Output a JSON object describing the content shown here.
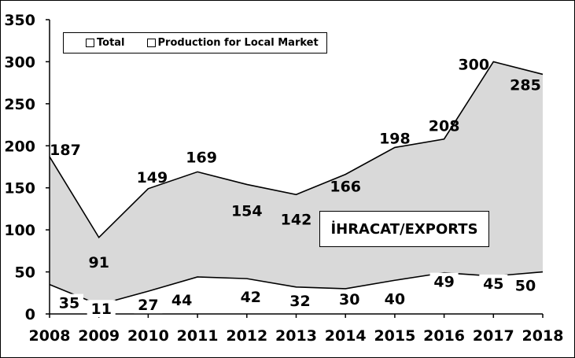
{
  "chart_data": {
    "type": "area",
    "categories": [
      "2008",
      "2009",
      "2010",
      "2011",
      "2012",
      "2013",
      "2014",
      "2015",
      "2016",
      "2017",
      "2018"
    ],
    "series": [
      {
        "name": "Total",
        "values": [
          187,
          91,
          149,
          169,
          154,
          142,
          166,
          198,
          208,
          300,
          285
        ]
      },
      {
        "name": "Production for Local Market",
        "values": [
          35,
          11,
          27,
          44,
          42,
          32,
          30,
          40,
          49,
          45,
          50
        ]
      }
    ],
    "ylim": [
      0,
      350
    ],
    "yticks": [
      0,
      50,
      100,
      150,
      200,
      250,
      300,
      350
    ],
    "annotation": "İHRACAT/EXPORTS",
    "legend": [
      "Total",
      "Production for Local Market"
    ],
    "colors": {
      "fill": "#d9d9d9",
      "line": "#000000"
    }
  }
}
